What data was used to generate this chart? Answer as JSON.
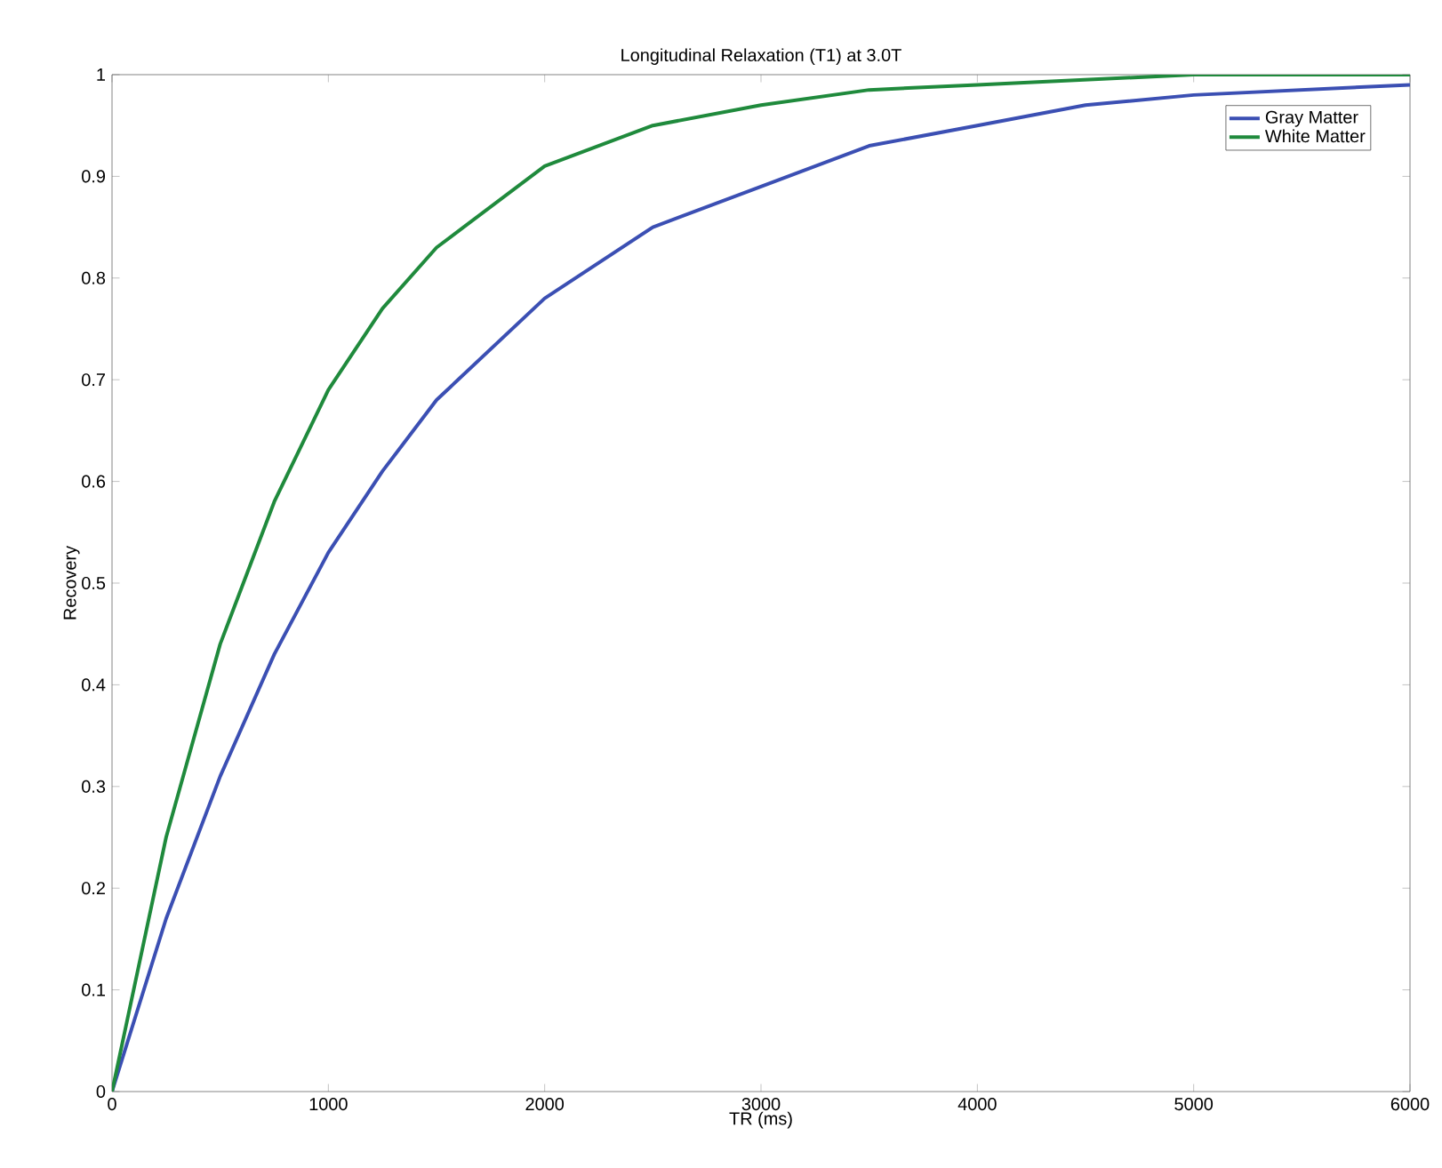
{
  "chart_data": {
    "type": "line",
    "title": "Longitudinal Relaxation (T1) at 3.0T",
    "xlabel": "TR (ms)",
    "ylabel": "Recovery",
    "xlim": [
      0,
      6000
    ],
    "ylim": [
      0,
      1
    ],
    "xticks": [
      0,
      1000,
      2000,
      3000,
      4000,
      5000,
      6000
    ],
    "yticks": [
      0,
      0.1,
      0.2,
      0.3,
      0.4,
      0.5,
      0.6,
      0.7,
      0.8,
      0.9,
      1
    ],
    "grid": false,
    "legend": "top right",
    "marker": "none",
    "line_style": "solid",
    "series": [
      {
        "name": "Gray Matter",
        "color": "#3b4fb3",
        "x": [
          0,
          250,
          500,
          750,
          1000,
          1250,
          1500,
          2000,
          2500,
          3000,
          3500,
          4000,
          4500,
          5000,
          6000
        ],
        "values": [
          0,
          0.17,
          0.31,
          0.43,
          0.53,
          0.61,
          0.68,
          0.78,
          0.85,
          0.89,
          0.93,
          0.95,
          0.97,
          0.98,
          0.99
        ]
      },
      {
        "name": "White Matter",
        "color": "#1f8a3c",
        "x": [
          0,
          250,
          500,
          750,
          1000,
          1250,
          1500,
          2000,
          2500,
          3000,
          3500,
          4000,
          5000,
          6000
        ],
        "values": [
          0,
          0.25,
          0.44,
          0.58,
          0.69,
          0.77,
          0.83,
          0.91,
          0.95,
          0.97,
          0.985,
          0.99,
          1.0,
          1.0
        ]
      }
    ]
  }
}
